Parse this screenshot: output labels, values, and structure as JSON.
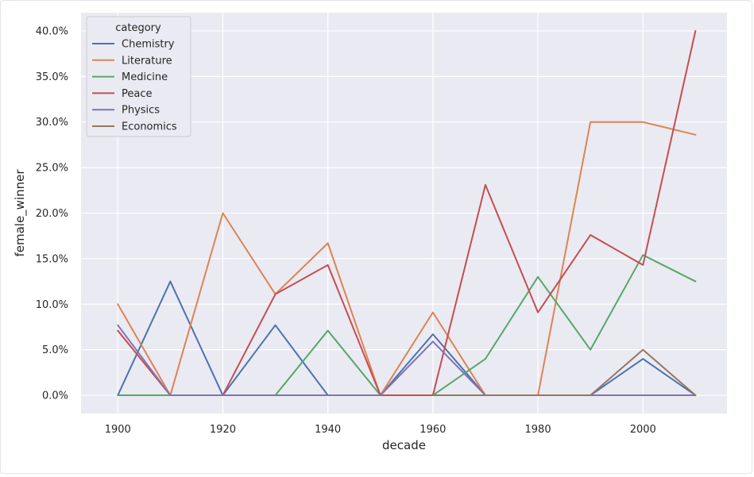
{
  "chart_data": {
    "type": "line",
    "xlabel": "decade",
    "ylabel": "female_winner",
    "xlim": [
      1893,
      2016
    ],
    "ylim": [
      -0.02,
      0.42
    ],
    "x_ticks": [
      1900,
      1920,
      1940,
      1960,
      1980,
      2000
    ],
    "y_ticks": [
      0.0,
      0.05,
      0.1,
      0.15,
      0.2,
      0.25,
      0.3,
      0.35,
      0.4
    ],
    "y_tick_labels": [
      "0.0%",
      "5.0%",
      "10.0%",
      "15.0%",
      "20.0%",
      "25.0%",
      "30.0%",
      "35.0%",
      "40.0%"
    ],
    "grid": true,
    "legend": {
      "title": "category",
      "placement": "top-left"
    },
    "x": [
      1900,
      1910,
      1920,
      1930,
      1940,
      1950,
      1960,
      1970,
      1980,
      1990,
      2000,
      2010
    ],
    "series": [
      {
        "name": "Chemistry",
        "color": "#4c72b0",
        "values": [
          0.0,
          0.125,
          0.0,
          0.077,
          0.0,
          0.0,
          0.067,
          0.0,
          0.0,
          0.0,
          0.04,
          0.0
        ]
      },
      {
        "name": "Literature",
        "color": "#dd8452",
        "values": [
          0.1,
          0.0,
          0.2,
          0.111,
          0.167,
          0.0,
          0.091,
          0.0,
          0.0,
          0.3,
          0.3,
          0.286
        ]
      },
      {
        "name": "Medicine",
        "color": "#55a868",
        "values": [
          0.0,
          0.0,
          0.0,
          0.0,
          0.071,
          0.0,
          0.0,
          0.04,
          0.13,
          0.05,
          0.154,
          0.125
        ]
      },
      {
        "name": "Peace",
        "color": "#c44e52",
        "values": [
          0.071,
          0.0,
          0.0,
          0.111,
          0.143,
          0.0,
          0.0,
          0.231,
          0.091,
          0.176,
          0.143,
          0.4
        ]
      },
      {
        "name": "Physics",
        "color": "#8172b3",
        "values": [
          0.077,
          0.0,
          0.0,
          0.0,
          0.0,
          0.0,
          0.059,
          0.0,
          0.0,
          0.0,
          0.0,
          0.0
        ]
      },
      {
        "name": "Economics",
        "color": "#937860",
        "values": [
          null,
          null,
          null,
          null,
          null,
          null,
          0.0,
          0.0,
          0.0,
          0.0,
          0.05,
          0.0
        ]
      }
    ]
  }
}
